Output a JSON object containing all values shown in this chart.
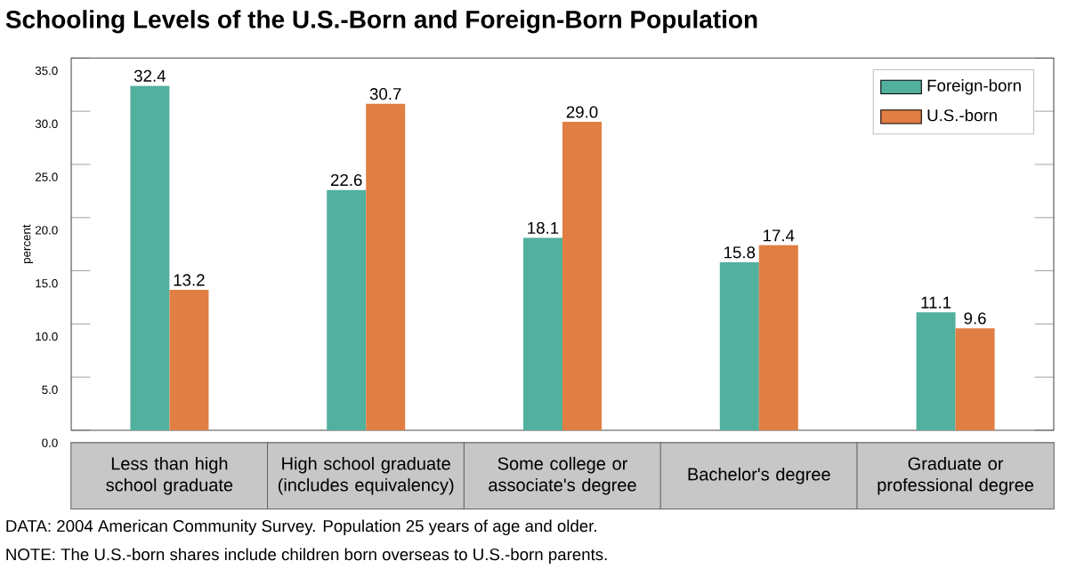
{
  "chart_data": {
    "type": "bar",
    "title": "Schooling Levels of the U.S.-Born and Foreign-Born Population",
    "ylabel": "percent",
    "categories": [
      "Less than high school graduate",
      "High school graduate (includes equivalency)",
      "Some college or associate's degree",
      "Bachelor's degree",
      "Graduate or professional degree"
    ],
    "series": [
      {
        "name": "Foreign-born",
        "color": "#52b09e",
        "values": [
          32.4,
          22.6,
          18.1,
          15.8,
          11.1
        ],
        "value_labels": [
          "32.4",
          "22.6",
          "18.1",
          "15.8",
          "11.1"
        ]
      },
      {
        "name": "U.S.-born",
        "color": "#e07e44",
        "values": [
          13.2,
          30.7,
          29.0,
          17.4,
          9.6
        ],
        "value_labels": [
          "13.2",
          "30.7",
          "29.0",
          "17.4",
          "9.6"
        ]
      }
    ],
    "ylim": [
      0,
      35
    ],
    "yticks": [
      {
        "value": 0,
        "label": "0.0"
      },
      {
        "value": 5,
        "label": "5.0"
      },
      {
        "value": 10,
        "label": "10.0"
      },
      {
        "value": 15,
        "label": "15.0"
      },
      {
        "value": 20,
        "label": "20.0"
      },
      {
        "value": 25,
        "label": "25.0"
      },
      {
        "value": 30,
        "label": "30.0"
      },
      {
        "value": 35,
        "label": "35.0"
      }
    ],
    "grid": false,
    "legend": "top right",
    "annotations": [
      "DATA: 2004 American Community Survey.  Population 25 years of age and older.",
      "NOTE: The U.S.-born shares include children born overseas to U.S.-born parents."
    ]
  }
}
